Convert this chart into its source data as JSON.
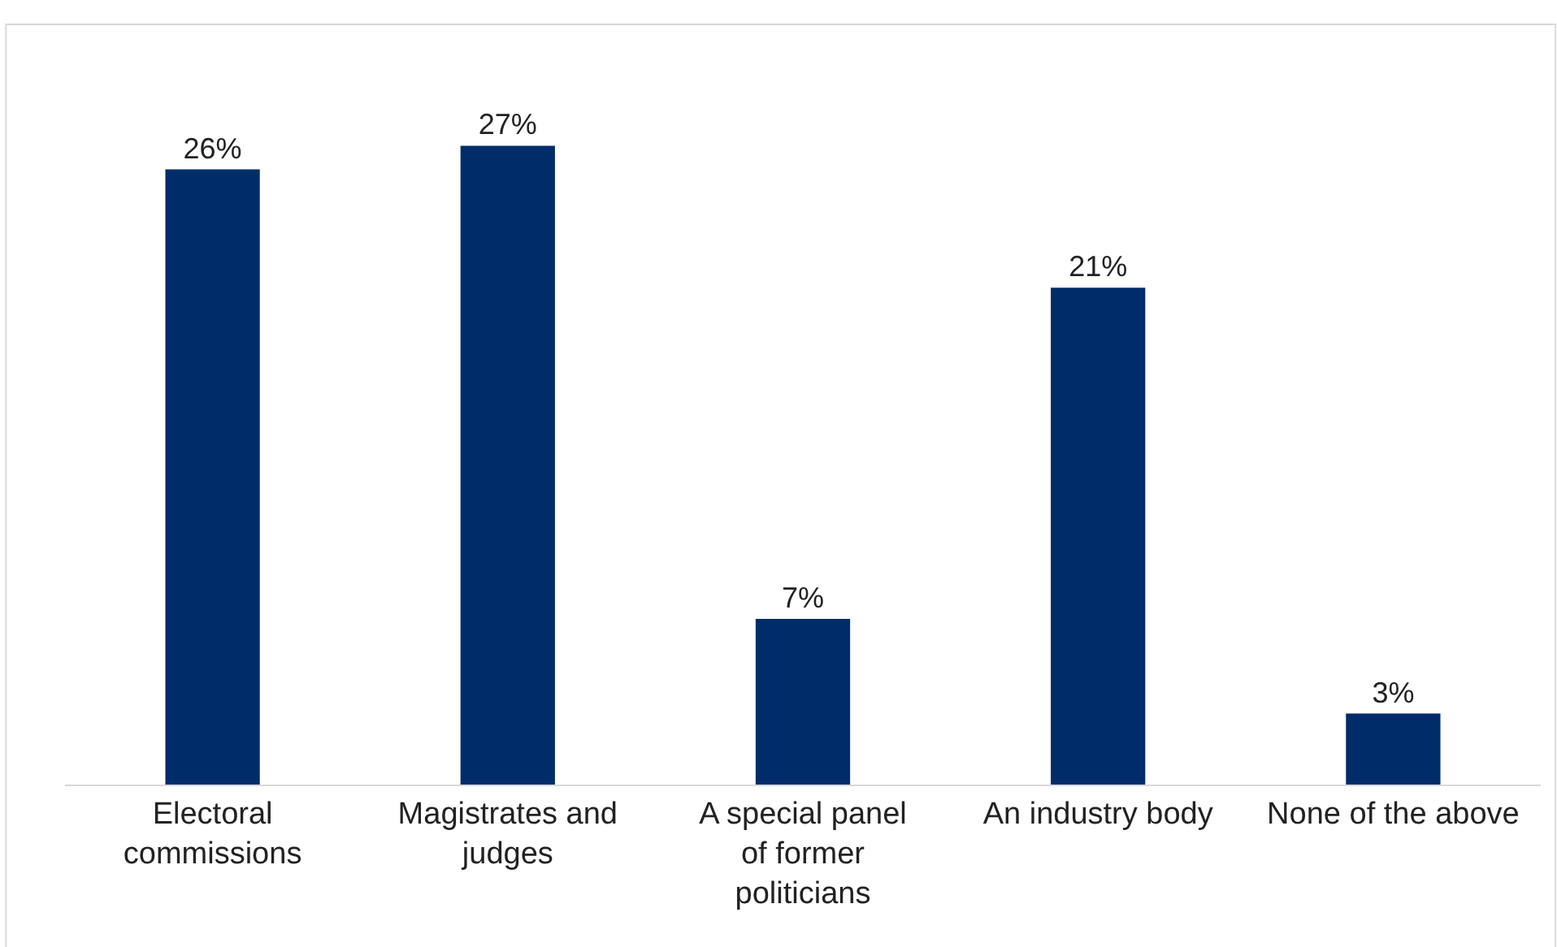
{
  "chart_data": {
    "type": "bar",
    "categories": [
      "Electoral commissions",
      "Magistrates and judges",
      "A special panel of former politicians",
      "An industry body",
      "None of the above"
    ],
    "values": [
      26,
      27,
      7,
      21,
      3
    ],
    "value_labels": [
      "26%",
      "27%",
      "7%",
      "21%",
      "3%"
    ],
    "color": "#002d6a"
  }
}
